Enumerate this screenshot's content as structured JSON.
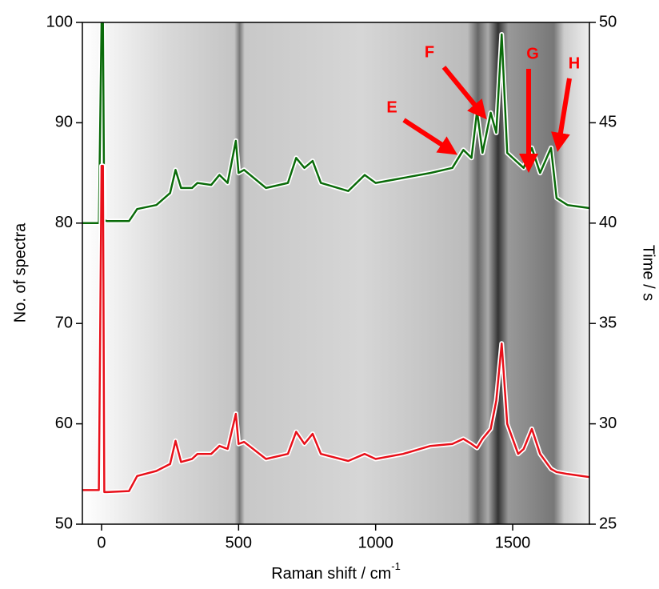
{
  "chart_data": {
    "type": "line",
    "xlabel": {
      "text": "Raman shift / cm",
      "superscript": "-1"
    },
    "ylabel": "No. of spectra",
    "y2label": "Time / s",
    "x": [
      -70,
      -10,
      0,
      5,
      10,
      20,
      100,
      130,
      200,
      250,
      270,
      290,
      330,
      350,
      400,
      430,
      460,
      490,
      500,
      520,
      600,
      680,
      710,
      740,
      770,
      800,
      900,
      960,
      1000,
      1100,
      1200,
      1280,
      1320,
      1350,
      1370,
      1390,
      1420,
      1440,
      1460,
      1480,
      1520,
      1540,
      1570,
      1600,
      1640,
      1660,
      1700,
      1780
    ],
    "series": [
      {
        "color": "#0a6b0a",
        "values": [
          80,
          80,
          100,
          100,
          80.3,
          80.2,
          80.2,
          81.4,
          81.8,
          83,
          85.3,
          83.5,
          83.5,
          84,
          83.8,
          84.8,
          84,
          88.2,
          85,
          85.3,
          83.5,
          84,
          86.5,
          85.5,
          86.2,
          84,
          83.2,
          84.8,
          84,
          84.5,
          85,
          85.5,
          87.3,
          86.5,
          91.2,
          87,
          91,
          89,
          98.8,
          87,
          86,
          85.5,
          87.5,
          85,
          87.5,
          82.5,
          81.8,
          81.5
        ]
      },
      {
        "color": "#e8101a",
        "values": [
          53.4,
          53.4,
          85.7,
          85.7,
          53.2,
          53.2,
          53.3,
          54.8,
          55.3,
          56,
          58.3,
          56.2,
          56.5,
          57,
          57,
          57.8,
          57.5,
          61,
          58,
          58.2,
          56.5,
          57,
          59.2,
          58,
          59,
          57,
          56.3,
          57,
          56.5,
          57,
          57.8,
          58,
          58.5,
          58,
          57.6,
          58.5,
          59.5,
          62.3,
          68,
          60,
          57,
          57.5,
          59.5,
          57,
          55.5,
          55.2,
          55,
          54.7
        ]
      }
    ],
    "xlim": [
      -70,
      1780
    ],
    "xticks": [
      0,
      500,
      1000,
      1500
    ],
    "ylim": [
      50,
      100
    ],
    "yticks": [
      50,
      60,
      70,
      80,
      90,
      100
    ],
    "y2lim": [
      25,
      50
    ],
    "y2ticks": [
      25,
      30,
      35,
      40,
      45,
      50
    ],
    "annotations": [
      "E",
      "F",
      "G",
      "H"
    ]
  }
}
